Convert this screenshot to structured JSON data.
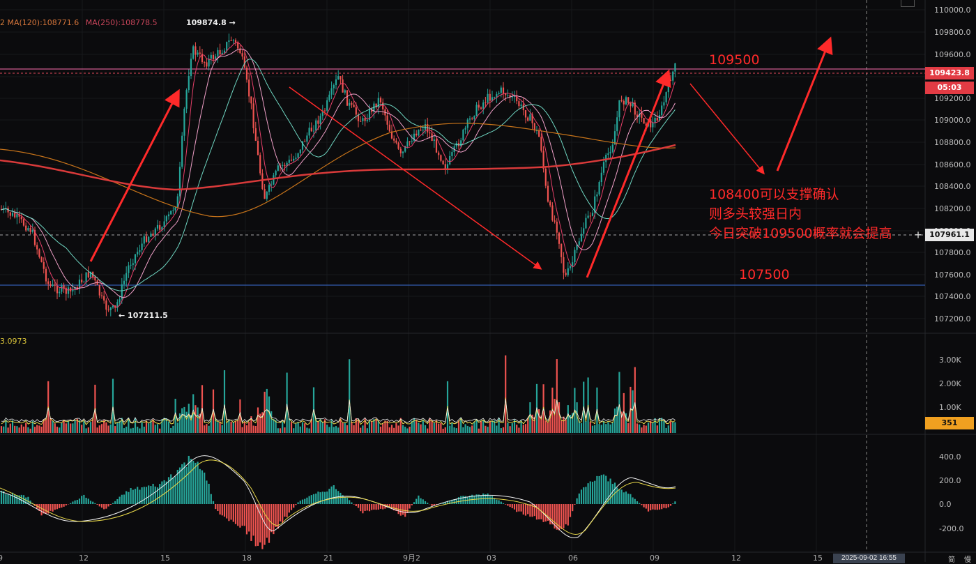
{
  "legend": {
    "ma_partial": "2",
    "ma120": "MA(120):108771.6",
    "ma250": "MA(250):108778.5",
    "volume_ma": "3.0973"
  },
  "markers": {
    "high": "109874.8 →",
    "low": "← 107211.5"
  },
  "annotations": {
    "target_level": "109500",
    "support_level": "107500",
    "line1": "108400可以支撑确认",
    "line2": "则多头较强日内",
    "line3": "今日突破109500概率就会提高"
  },
  "price_axis": {
    "ticks": [
      "110000.0",
      "109800.0",
      "109600.0",
      "109400.0",
      "109200.0",
      "109000.0",
      "108800.0",
      "108600.0",
      "108400.0",
      "108200.0",
      "108000.0",
      "107800.0",
      "107600.0",
      "107400.0",
      "107200.0"
    ]
  },
  "volume_axis": {
    "ticks": [
      "3.00K",
      "2.00K",
      "1.00K"
    ]
  },
  "macd_axis": {
    "ticks": [
      "400.0",
      "200.0",
      "0.0",
      "-200.0"
    ]
  },
  "tags": {
    "current_price": "109423.8",
    "countdown": "05:03",
    "crosshair_price": "107961.1",
    "current_volume": "351",
    "crosshair_time": "2025-09-02 16:55"
  },
  "time_axis": {
    "labels": [
      "9",
      "12",
      "15",
      "18",
      "21",
      "9月2",
      "03",
      "06",
      "09",
      "12",
      "15"
    ]
  },
  "corner_labels": {
    "a": "简",
    "b": "慢"
  },
  "colors": {
    "up": "#26a69a",
    "down": "#ef5350",
    "annotation": "#ff2a2a",
    "level_top": "#ff6fb0",
    "level_bottom": "#3b6fd6"
  }
}
